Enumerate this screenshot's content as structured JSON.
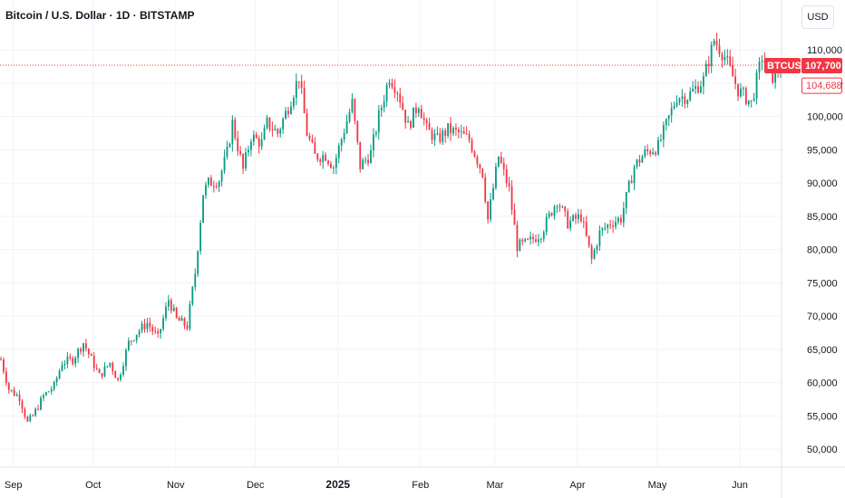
{
  "header": {
    "title": "Bitcoin / U.S. Dollar · 1D · BITSTAMP",
    "currency_button": "USD"
  },
  "chart_data": {
    "type": "candlestick",
    "y_ticks": [
      50000,
      55000,
      60000,
      65000,
      70000,
      75000,
      80000,
      85000,
      90000,
      95000,
      100000,
      105000,
      110000
    ],
    "y_tick_labels": [
      "50,000",
      "55,000",
      "60,000",
      "65,000",
      "70,000",
      "75,000",
      "80,000",
      "85,000",
      "90,000",
      "95,000",
      "100,000",
      "105,000",
      "110,000"
    ],
    "ylim": [
      47300,
      117500
    ],
    "x_ticks": [
      {
        "label": "Sep",
        "date": "2024-09-01",
        "bold": false
      },
      {
        "label": "Oct",
        "date": "2024-10-01",
        "bold": false
      },
      {
        "label": "Nov",
        "date": "2024-11-01",
        "bold": false
      },
      {
        "label": "Dec",
        "date": "2024-12-01",
        "bold": false
      },
      {
        "label": "2025",
        "date": "2025-01-01",
        "bold": true
      },
      {
        "label": "Feb",
        "date": "2025-02-01",
        "bold": false
      },
      {
        "label": "Mar",
        "date": "2025-03-01",
        "bold": false
      },
      {
        "label": "Apr",
        "date": "2025-04-01",
        "bold": false
      },
      {
        "label": "May",
        "date": "2025-05-01",
        "bold": false
      },
      {
        "label": "Jun",
        "date": "2025-06-01",
        "bold": false
      }
    ],
    "xlim": [
      "2024-08-27",
      "2025-06-16"
    ],
    "series": [
      {
        "kind": "daily-close",
        "points": [
          [
            "2024-08-27",
            63500
          ],
          [
            "2024-08-30",
            59000
          ],
          [
            "2024-09-03",
            57800
          ],
          [
            "2024-09-06",
            54000
          ],
          [
            "2024-09-08",
            55000
          ],
          [
            "2024-09-12",
            58000
          ],
          [
            "2024-09-16",
            59500
          ],
          [
            "2024-09-19",
            63000
          ],
          [
            "2024-09-23",
            63500
          ],
          [
            "2024-09-27",
            66000
          ],
          [
            "2024-09-30",
            63500
          ],
          [
            "2024-10-03",
            61000
          ],
          [
            "2024-10-07",
            63000
          ],
          [
            "2024-10-10",
            60300
          ],
          [
            "2024-10-14",
            66000
          ],
          [
            "2024-10-17",
            67500
          ],
          [
            "2024-10-21",
            69000
          ],
          [
            "2024-10-25",
            66700
          ],
          [
            "2024-10-29",
            72500
          ],
          [
            "2024-11-01",
            69500
          ],
          [
            "2024-11-05",
            68500
          ],
          [
            "2024-11-08",
            76500
          ],
          [
            "2024-11-11",
            88500
          ],
          [
            "2024-11-13",
            90000
          ],
          [
            "2024-11-17",
            90500
          ],
          [
            "2024-11-20",
            94500
          ],
          [
            "2024-11-22",
            99000
          ],
          [
            "2024-11-26",
            92000
          ],
          [
            "2024-11-29",
            97000
          ],
          [
            "2024-12-03",
            96000
          ],
          [
            "2024-12-05",
            99000
          ],
          [
            "2024-12-09",
            97500
          ],
          [
            "2024-12-13",
            101500
          ],
          [
            "2024-12-17",
            106000
          ],
          [
            "2024-12-20",
            97500
          ],
          [
            "2024-12-23",
            94000
          ],
          [
            "2024-12-27",
            94200
          ],
          [
            "2024-12-30",
            92500
          ],
          [
            "2025-01-03",
            98000
          ],
          [
            "2025-01-06",
            102000
          ],
          [
            "2025-01-09",
            92500
          ],
          [
            "2025-01-13",
            94500
          ],
          [
            "2025-01-16",
            100000
          ],
          [
            "2025-01-20",
            106000
          ],
          [
            "2025-01-23",
            104000
          ],
          [
            "2025-01-27",
            98500
          ],
          [
            "2025-01-31",
            102000
          ],
          [
            "2025-02-03",
            98000
          ],
          [
            "2025-02-07",
            96500
          ],
          [
            "2025-02-11",
            98000
          ],
          [
            "2025-02-15",
            97500
          ],
          [
            "2025-02-19",
            96500
          ],
          [
            "2025-02-24",
            91500
          ],
          [
            "2025-02-26",
            84500
          ],
          [
            "2025-03-02",
            94000
          ],
          [
            "2025-03-06",
            89000
          ],
          [
            "2025-03-09",
            80500
          ],
          [
            "2025-03-13",
            81000
          ],
          [
            "2025-03-18",
            82500
          ],
          [
            "2025-03-24",
            87500
          ],
          [
            "2025-03-28",
            84000
          ],
          [
            "2025-04-02",
            85000
          ],
          [
            "2025-04-06",
            78500
          ],
          [
            "2025-04-09",
            82500
          ],
          [
            "2025-04-13",
            84000
          ],
          [
            "2025-04-17",
            84700
          ],
          [
            "2025-04-22",
            92500
          ],
          [
            "2025-04-26",
            94500
          ],
          [
            "2025-05-01",
            95500
          ],
          [
            "2025-05-08",
            103000
          ],
          [
            "2025-05-12",
            103000
          ],
          [
            "2025-05-18",
            105500
          ],
          [
            "2025-05-22",
            111500
          ],
          [
            "2025-05-26",
            109000
          ],
          [
            "2025-05-31",
            104000
          ],
          [
            "2025-06-05",
            102000
          ],
          [
            "2025-06-09",
            109000
          ],
          [
            "2025-06-13",
            106000
          ],
          [
            "2025-06-16",
            107700
          ]
        ]
      }
    ],
    "last_price_label": "BTCUSD",
    "last_price": 107700,
    "last_price_text": "107,700",
    "second_price": 104688,
    "second_price_text": "104,688",
    "up_color": "#089981",
    "down_color": "#f23645",
    "grid": true
  }
}
